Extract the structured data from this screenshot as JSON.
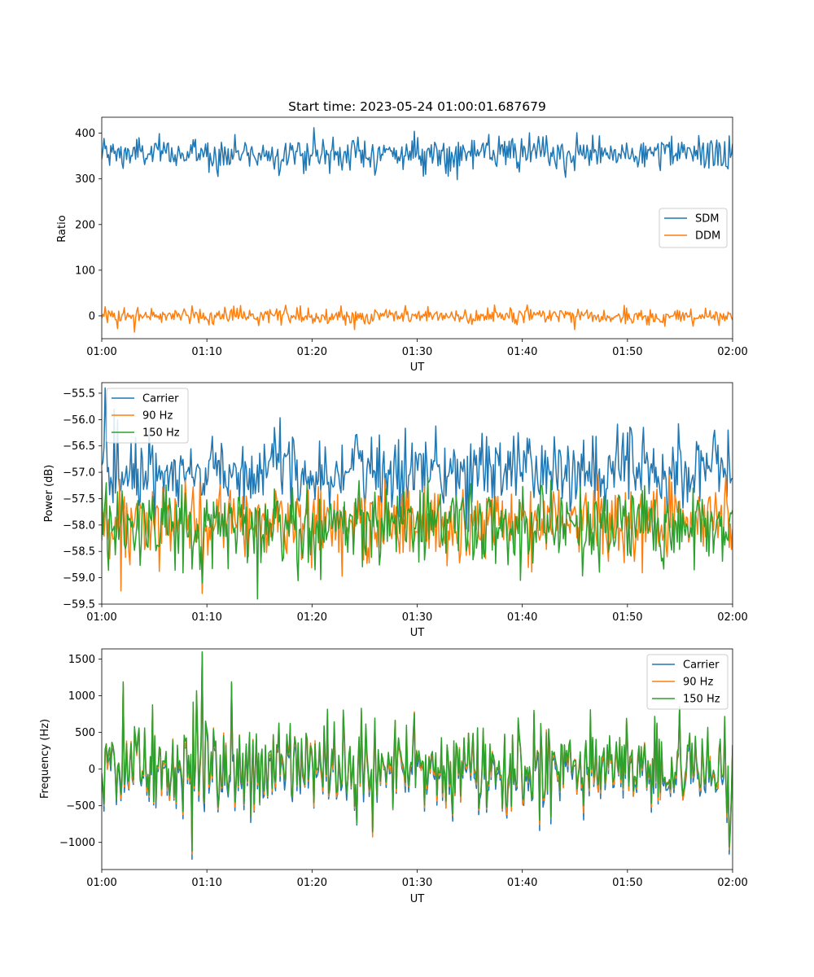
{
  "chart_data": [
    {
      "type": "line",
      "title": "Start time: 2023-05-24 01:00:01.687679",
      "xlabel": "UT",
      "ylabel": "Ratio",
      "x_range": [
        "01:00",
        "02:00"
      ],
      "xticks": [
        "01:00",
        "01:10",
        "01:20",
        "01:30",
        "01:40",
        "01:50",
        "02:00"
      ],
      "ylim": [
        -50,
        435
      ],
      "yticks": [
        0,
        100,
        200,
        300,
        400
      ],
      "ytick_labels": [
        "0",
        "100",
        "200",
        "300",
        "400"
      ],
      "legend": {
        "placement": "center-right"
      },
      "series": [
        {
          "name": "SDM",
          "color": "#1f77b4",
          "mean": 355,
          "spread": 18,
          "spikes": [
            [
              20.2,
              412
            ],
            [
              45.0,
              318
            ],
            [
              3.5,
              390
            ]
          ]
        },
        {
          "name": "DDM",
          "color": "#ff7f0e",
          "mean": 0,
          "spread": 9,
          "spikes": [
            [
              1.5,
              -28
            ],
            [
              24.0,
              -30
            ],
            [
              45.0,
              -30
            ],
            [
              0.3,
              20
            ]
          ]
        }
      ]
    },
    {
      "type": "line",
      "title": "",
      "xlabel": "UT",
      "ylabel": "Power (dB)",
      "x_range": [
        "01:00",
        "02:00"
      ],
      "xticks": [
        "01:00",
        "01:10",
        "01:20",
        "01:30",
        "01:40",
        "01:50",
        "02:00"
      ],
      "ylim": [
        -59.5,
        -55.3
      ],
      "yticks": [
        -59.5,
        -59.0,
        -58.5,
        -58.0,
        -57.5,
        -57.0,
        -56.5,
        -56.0,
        -55.5
      ],
      "ytick_labels": [
        "−59.5",
        "−59.0",
        "−58.5",
        "−58.0",
        "−57.5",
        "−57.0",
        "−56.5",
        "−56.0",
        "−55.5"
      ],
      "legend": {
        "placement": "upper-left"
      },
      "series": [
        {
          "name": "Carrier",
          "color": "#1f77b4",
          "mean": -56.95,
          "spread": 0.35,
          "spikes": [
            [
              0.3,
              -55.4
            ],
            [
              1.2,
              -55.8
            ],
            [
              59.6,
              -56.2
            ]
          ]
        },
        {
          "name": "90 Hz",
          "color": "#ff7f0e",
          "mean": -57.95,
          "spread": 0.35,
          "spikes": [
            [
              9.6,
              -59.3
            ],
            [
              1.8,
              -59.25
            ]
          ]
        },
        {
          "name": "150 Hz",
          "color": "#2ca02c",
          "mean": -58.0,
          "spread": 0.38,
          "spikes": [
            [
              9.5,
              -59.1
            ],
            [
              39.8,
              -59.05
            ]
          ]
        }
      ]
    },
    {
      "type": "line",
      "title": "",
      "xlabel": "UT",
      "ylabel": "Frequency (Hz)",
      "x_range": [
        "01:00",
        "02:00"
      ],
      "xticks": [
        "01:00",
        "01:10",
        "01:20",
        "01:30",
        "01:40",
        "01:50",
        "02:00"
      ],
      "ylim": [
        -1370,
        1640
      ],
      "yticks": [
        -1000,
        -500,
        0,
        500,
        1000,
        1500
      ],
      "ytick_labels": [
        "−1000",
        "−500",
        "0",
        "500",
        "1000",
        "1500"
      ],
      "legend": {
        "placement": "upper-right"
      },
      "series": [
        {
          "name": "Carrier",
          "color": "#1f77b4",
          "mean": -20,
          "spread": 330,
          "spikes": [
            [
              8.6,
              -1230
            ],
            [
              9.6,
              1560
            ],
            [
              59.7,
              -1160
            ],
            [
              2.0,
              1150
            ],
            [
              12.3,
              1150
            ]
          ]
        },
        {
          "name": "90 Hz",
          "color": "#ff7f0e",
          "mean": 30,
          "spread": 330,
          "spikes": [
            [
              8.6,
              -1160
            ],
            [
              9.6,
              1580
            ],
            [
              59.7,
              -1100
            ],
            [
              2.0,
              1170
            ],
            [
              12.3,
              1170
            ]
          ]
        },
        {
          "name": "150 Hz",
          "color": "#2ca02c",
          "mean": 60,
          "spread": 330,
          "spikes": [
            [
              8.6,
              -1120
            ],
            [
              9.6,
              1600
            ],
            [
              59.7,
              -1060
            ],
            [
              2.0,
              1190
            ],
            [
              12.3,
              1190
            ]
          ]
        }
      ]
    }
  ]
}
